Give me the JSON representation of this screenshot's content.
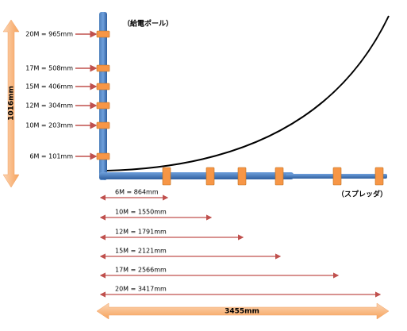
{
  "pole_label": "（給電ポール）",
  "spreader_label": "（スプレッダ）",
  "height_label": "1016mm",
  "width_label": "3455mm",
  "vertical_positions": [
    "20M = 965mm",
    "17M = 508mm",
    "15M = 406mm",
    "12M = 304mm",
    "10M = 203mm",
    "6M = 101mm"
  ],
  "horizontal_positions": [
    "6M = 864mm",
    "10M = 1550mm",
    "12M = 1791mm",
    "15M = 2121mm",
    "17M = 2566mm",
    "20M = 3417mm"
  ]
}
